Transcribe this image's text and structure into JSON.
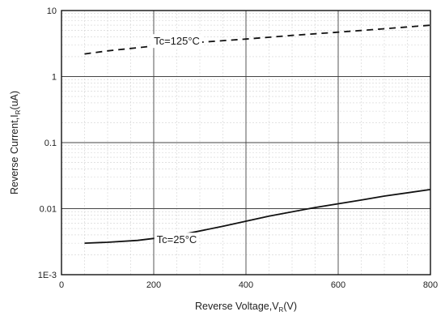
{
  "chart_data": {
    "type": "line",
    "xlabel": {
      "text": "Reverse Voltage,V",
      "sub": "R",
      "suffix": "(V)"
    },
    "ylabel": {
      "text": "Reverse Current,I",
      "sub": "R",
      "suffix": "(uA)"
    },
    "x_ticks": [
      "0",
      "200",
      "400",
      "600",
      "800"
    ],
    "y_ticks": [
      "1E-3",
      "0.01",
      "0.1",
      "1",
      "10"
    ],
    "xlim": [
      0,
      800
    ],
    "ylim": [
      0.001,
      10
    ],
    "y_scale": "log",
    "grid": true,
    "series": [
      {
        "name": "Tc=125°C",
        "style": "dashed",
        "color": "#111111",
        "points": [
          [
            50,
            2.2
          ],
          [
            100,
            2.45
          ],
          [
            200,
            2.9
          ],
          [
            300,
            3.3
          ],
          [
            400,
            3.7
          ],
          [
            500,
            4.2
          ],
          [
            600,
            4.7
          ],
          [
            700,
            5.3
          ],
          [
            800,
            6.0
          ]
        ]
      },
      {
        "name": "Tc=25°C",
        "style": "solid",
        "color": "#111111",
        "points": [
          [
            50,
            0.003
          ],
          [
            100,
            0.0031
          ],
          [
            165,
            0.0033
          ],
          [
            250,
            0.0039
          ],
          [
            350,
            0.0054
          ],
          [
            450,
            0.0077
          ],
          [
            550,
            0.0104
          ],
          [
            650,
            0.0135
          ],
          [
            700,
            0.0155
          ],
          [
            800,
            0.0195
          ]
        ]
      }
    ],
    "annotations": [
      {
        "text": "Tc=125°C",
        "x": 250,
        "y": 3.5
      },
      {
        "text": "Tc=25°C",
        "x": 250,
        "y": 0.00345
      }
    ]
  }
}
